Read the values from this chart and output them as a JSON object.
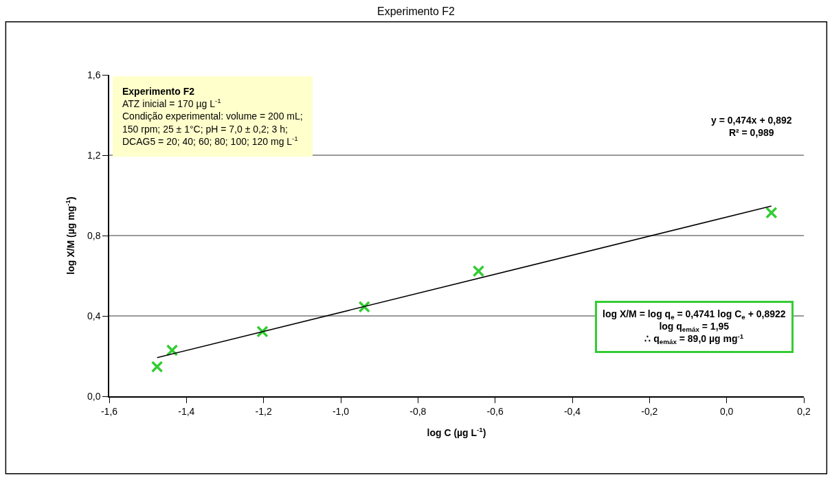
{
  "chart_data": {
    "type": "scatter",
    "title": "Experimento F2",
    "xlabel": "log C (µg L$^{-1}$)",
    "ylabel": "log X/M (µg mg$^{-1}$)",
    "series": [
      {
        "color": "#33cc33",
        "marker": "cross",
        "x": [
          -1.476,
          -1.437,
          -1.203,
          -0.939,
          -0.643,
          0.116
        ],
        "values": [
          0.147,
          0.229,
          0.322,
          0.445,
          0.623,
          0.914
        ]
      },
      {
        "type": "line",
        "color": "#000000",
        "marker": "none",
        "line_style": "solid",
        "x": [
          -1.476,
          0.116
        ],
        "values": [
          0.192,
          0.947
        ]
      }
    ],
    "annotations": [
      "Experimento F2\nATZ inicial = 170 µg L$^{-1}$\nCondição experimental: volume = 200 mL;\n150 rpm; 25 ± 1°C; pH = 7,0 ± 0,2; 3 h;\nDCAG5 = 20; 40; 60; 80; 100; 120 mg L$^{-1}$",
      "y = 0,474x + 0,892\nR² = 0,989",
      "log X/M = log q$_{e}$ = 0,4741 log C$_{e}$ + 0,8922\nlog q$_{emáx}$ = 1,95\n∴ q$_{emáx}$ = 89,0 µg mg$^{-1}$"
    ],
    "xlim": [
      -1.6,
      0.2
    ],
    "xticks": [
      {
        "value": -1.6,
        "label": "-1,6"
      },
      {
        "value": -1.4,
        "label": "-1,4"
      },
      {
        "value": -1.2,
        "label": "-1,2"
      },
      {
        "value": -1.0,
        "label": "-1,0"
      },
      {
        "value": -0.8,
        "label": "-0,8"
      },
      {
        "value": -0.6,
        "label": "-0,6"
      },
      {
        "value": -0.4,
        "label": "-0,4"
      },
      {
        "value": -0.2,
        "label": "-0,2"
      },
      {
        "value": 0.0,
        "label": "0,0"
      },
      {
        "value": 0.2,
        "label": "0,2"
      }
    ],
    "ylim": [
      0,
      1.6
    ],
    "yticks": [
      {
        "value": 0.0,
        "label": "0,0"
      },
      {
        "value": 0.4,
        "label": "0,4"
      },
      {
        "value": 0.8,
        "label": "0,8"
      },
      {
        "value": 1.2,
        "label": "1,2"
      },
      {
        "value": 1.6,
        "label": "1,6"
      }
    ],
    "grid": "y"
  }
}
